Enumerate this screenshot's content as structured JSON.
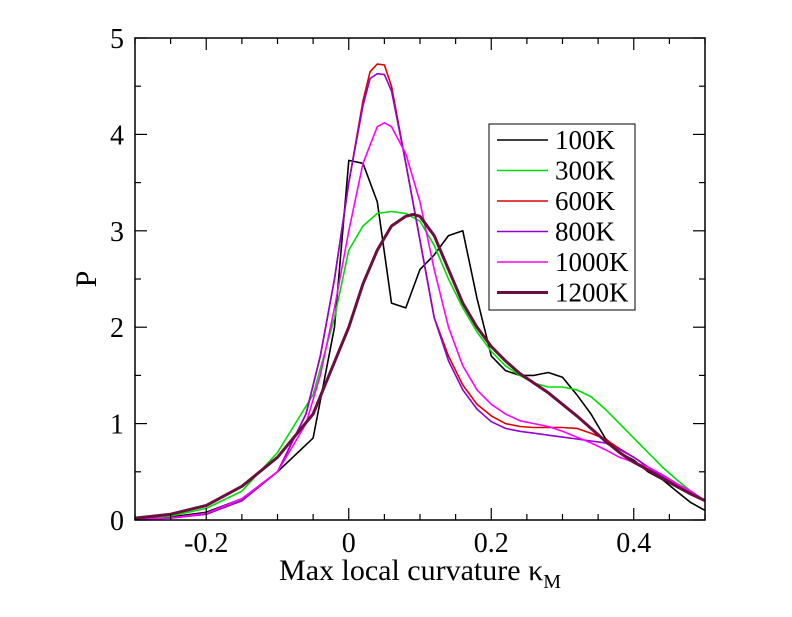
{
  "chart_data": {
    "type": "line",
    "title": "",
    "xlabel": "Max local curvature κ",
    "xlabel_subscript": "M",
    "ylabel": "P",
    "xlim": [
      -0.3,
      0.5
    ],
    "ylim": [
      0,
      5
    ],
    "xticks": [
      -0.2,
      0,
      0.2,
      0.4
    ],
    "xtick_labels": [
      "-0.2",
      "0",
      "0.2",
      "0.4"
    ],
    "yticks": [
      0,
      1,
      2,
      3,
      4,
      5
    ],
    "ytick_labels": [
      "0",
      "1",
      "2",
      "3",
      "4",
      "5"
    ],
    "grid": false,
    "legend_position": "top-right",
    "series": [
      {
        "name": "100K",
        "color": "#000000",
        "x": [
          -0.3,
          -0.25,
          -0.2,
          -0.15,
          -0.1,
          -0.05,
          -0.02,
          0.0,
          0.02,
          0.04,
          0.06,
          0.08,
          0.1,
          0.12,
          0.14,
          0.16,
          0.18,
          0.2,
          0.22,
          0.24,
          0.26,
          0.28,
          0.3,
          0.32,
          0.34,
          0.36,
          0.38,
          0.4,
          0.42,
          0.44,
          0.46,
          0.48,
          0.5
        ],
        "y": [
          0.01,
          0.03,
          0.08,
          0.22,
          0.5,
          0.85,
          2.0,
          3.73,
          3.7,
          3.3,
          2.25,
          2.2,
          2.6,
          2.75,
          2.95,
          3.0,
          2.3,
          1.7,
          1.55,
          1.5,
          1.5,
          1.53,
          1.48,
          1.3,
          1.1,
          0.85,
          0.7,
          0.62,
          0.5,
          0.42,
          0.3,
          0.18,
          0.1
        ]
      },
      {
        "name": "300K",
        "color": "#00dd00",
        "x": [
          -0.3,
          -0.25,
          -0.2,
          -0.15,
          -0.1,
          -0.05,
          -0.02,
          0.0,
          0.02,
          0.04,
          0.06,
          0.08,
          0.1,
          0.12,
          0.14,
          0.16,
          0.18,
          0.2,
          0.22,
          0.24,
          0.26,
          0.28,
          0.3,
          0.32,
          0.34,
          0.36,
          0.38,
          0.4,
          0.42,
          0.44,
          0.46,
          0.48,
          0.5
        ],
        "y": [
          0.01,
          0.04,
          0.12,
          0.3,
          0.7,
          1.3,
          2.1,
          2.8,
          3.05,
          3.18,
          3.2,
          3.18,
          3.1,
          2.85,
          2.5,
          2.2,
          1.95,
          1.75,
          1.6,
          1.5,
          1.42,
          1.38,
          1.38,
          1.35,
          1.28,
          1.15,
          1.0,
          0.85,
          0.7,
          0.55,
          0.42,
          0.3,
          0.2
        ]
      },
      {
        "name": "600K",
        "color": "#dd0000",
        "x": [
          -0.3,
          -0.25,
          -0.2,
          -0.15,
          -0.1,
          -0.06,
          -0.04,
          -0.02,
          0.0,
          0.02,
          0.03,
          0.04,
          0.05,
          0.06,
          0.08,
          0.1,
          0.12,
          0.14,
          0.16,
          0.18,
          0.2,
          0.22,
          0.24,
          0.26,
          0.28,
          0.3,
          0.32,
          0.34,
          0.36,
          0.38,
          0.4,
          0.42,
          0.44,
          0.46,
          0.48,
          0.5
        ],
        "y": [
          0.01,
          0.02,
          0.06,
          0.2,
          0.5,
          1.1,
          1.7,
          2.5,
          3.5,
          4.35,
          4.65,
          4.73,
          4.72,
          4.5,
          3.7,
          2.9,
          2.1,
          1.7,
          1.4,
          1.2,
          1.08,
          1.0,
          0.97,
          0.96,
          0.96,
          0.96,
          0.95,
          0.9,
          0.84,
          0.74,
          0.65,
          0.55,
          0.45,
          0.36,
          0.28,
          0.2
        ]
      },
      {
        "name": "800K",
        "color": "#9400d3",
        "x": [
          -0.3,
          -0.25,
          -0.2,
          -0.15,
          -0.1,
          -0.06,
          -0.04,
          -0.02,
          0.0,
          0.02,
          0.03,
          0.04,
          0.05,
          0.06,
          0.08,
          0.1,
          0.12,
          0.14,
          0.16,
          0.18,
          0.2,
          0.22,
          0.24,
          0.26,
          0.28,
          0.3,
          0.32,
          0.34,
          0.36,
          0.38,
          0.4,
          0.42,
          0.44,
          0.46,
          0.48,
          0.5
        ],
        "y": [
          0.01,
          0.02,
          0.06,
          0.2,
          0.5,
          1.1,
          1.7,
          2.5,
          3.5,
          4.3,
          4.58,
          4.63,
          4.62,
          4.45,
          3.7,
          2.9,
          2.1,
          1.65,
          1.35,
          1.15,
          1.02,
          0.95,
          0.92,
          0.9,
          0.88,
          0.86,
          0.84,
          0.82,
          0.8,
          0.73,
          0.65,
          0.55,
          0.45,
          0.36,
          0.28,
          0.2
        ]
      },
      {
        "name": "1000K",
        "color": "#ff00ff",
        "x": [
          -0.3,
          -0.25,
          -0.2,
          -0.15,
          -0.1,
          -0.06,
          -0.04,
          -0.02,
          0.0,
          0.02,
          0.04,
          0.05,
          0.06,
          0.08,
          0.1,
          0.12,
          0.14,
          0.16,
          0.18,
          0.2,
          0.22,
          0.24,
          0.26,
          0.28,
          0.3,
          0.32,
          0.34,
          0.36,
          0.38,
          0.4,
          0.42,
          0.44,
          0.46,
          0.48,
          0.5
        ],
        "y": [
          0.01,
          0.02,
          0.07,
          0.22,
          0.5,
          1.0,
          1.5,
          2.2,
          3.0,
          3.7,
          4.08,
          4.12,
          4.08,
          3.8,
          3.3,
          2.6,
          2.0,
          1.6,
          1.35,
          1.2,
          1.1,
          1.03,
          1.0,
          0.97,
          0.92,
          0.86,
          0.8,
          0.73,
          0.65,
          0.6,
          0.55,
          0.47,
          0.38,
          0.3,
          0.2
        ]
      },
      {
        "name": "1200K",
        "color": "#6b0f3f",
        "x": [
          -0.3,
          -0.25,
          -0.2,
          -0.15,
          -0.1,
          -0.05,
          0.0,
          0.02,
          0.04,
          0.06,
          0.08,
          0.09,
          0.1,
          0.12,
          0.14,
          0.16,
          0.18,
          0.2,
          0.22,
          0.24,
          0.26,
          0.28,
          0.3,
          0.32,
          0.34,
          0.36,
          0.38,
          0.4,
          0.42,
          0.44,
          0.46,
          0.48,
          0.5
        ],
        "y": [
          0.02,
          0.06,
          0.15,
          0.35,
          0.65,
          1.1,
          2.0,
          2.45,
          2.8,
          3.05,
          3.15,
          3.17,
          3.15,
          2.95,
          2.6,
          2.25,
          2.0,
          1.8,
          1.65,
          1.52,
          1.42,
          1.32,
          1.2,
          1.08,
          0.95,
          0.82,
          0.7,
          0.6,
          0.52,
          0.43,
          0.35,
          0.27,
          0.2
        ]
      }
    ]
  }
}
